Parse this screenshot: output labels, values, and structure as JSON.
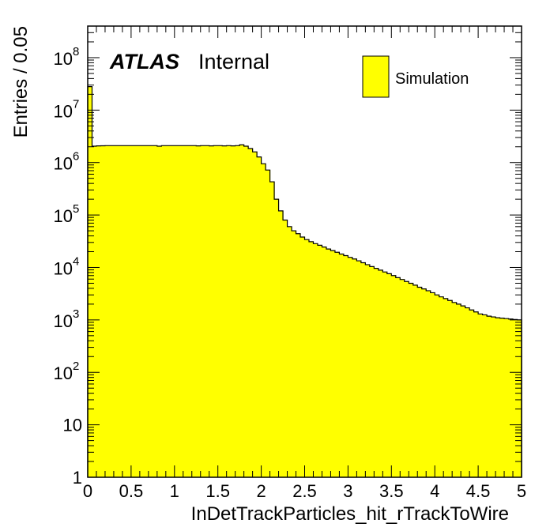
{
  "chart_data": {
    "type": "bar",
    "histogram": true,
    "xlabel": "InDetTrackParticles_hit_rTrackToWire",
    "ylabel": "Entries / 0.05",
    "xlim": [
      0,
      5
    ],
    "ylim": [
      1,
      400000000
    ],
    "y_scale": "log",
    "x_ticks": [
      "0",
      "0.5",
      "1",
      "1.5",
      "2",
      "2.5",
      "3",
      "3.5",
      "4",
      "4.5",
      "5"
    ],
    "label_main": "ATLAS",
    "label_sub": "Internal",
    "legend": {
      "entries": [
        "Simulation"
      ],
      "position": "top-right"
    },
    "fill_color": "#ffff00",
    "line_color": "#000000",
    "bin_width": 0.05,
    "bin_edges_start": 0,
    "series": [
      {
        "name": "Simulation",
        "values": [
          28000000,
          2050000,
          2080000,
          2090000,
          2100000,
          2100000,
          2100000,
          2100000,
          2100000,
          2100000,
          2100000,
          2100000,
          2100000,
          2100000,
          2100000,
          2100000,
          2050000,
          2100000,
          2100000,
          2100000,
          2100000,
          2100000,
          2100000,
          2100000,
          2100000,
          2080000,
          2100000,
          2100000,
          2080000,
          2100000,
          2100000,
          2080000,
          2100000,
          2080000,
          2100000,
          2180000,
          2050000,
          1850000,
          1600000,
          1280000,
          950000,
          720000,
          430000,
          200000,
          120000,
          80000,
          60000,
          50000,
          44000,
          38000,
          34000,
          31000,
          28500,
          26500,
          24500,
          22500,
          21000,
          19500,
          18000,
          16800,
          15600,
          14500,
          13400,
          12300,
          11300,
          10400,
          9600,
          8900,
          8200,
          7600,
          7000,
          6400,
          5900,
          5400,
          5000,
          4600,
          4200,
          3900,
          3600,
          3300,
          3000,
          2750,
          2550,
          2350,
          2150,
          2000,
          1850,
          1700,
          1550,
          1420,
          1300,
          1250,
          1180,
          1140,
          1100,
          1080,
          1060,
          1040,
          1020,
          1000
        ]
      }
    ]
  }
}
